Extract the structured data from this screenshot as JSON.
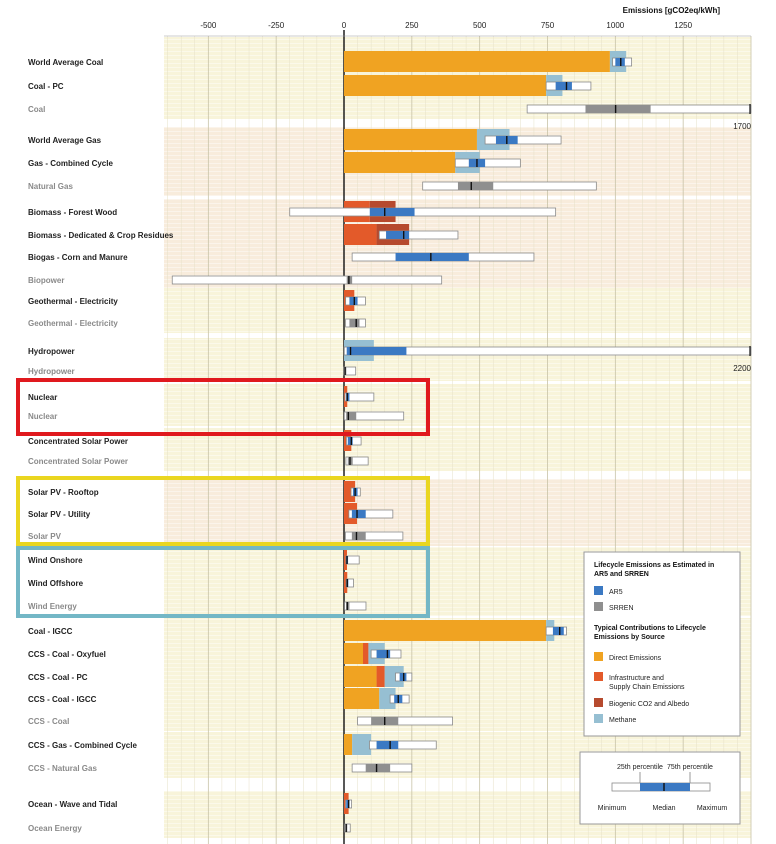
{
  "chart_data": {
    "type": "box-range",
    "title": "",
    "xlabel": "Emissions [gCO2eq/kWh]",
    "xlim": [
      -650,
      1500
    ],
    "xticks": [
      -500,
      -250,
      0,
      250,
      500,
      750,
      1000,
      1250
    ],
    "rows": [
      {
        "label": "World Average Coal",
        "kind": "ar5",
        "contrib": {
          "direct": 980,
          "infra": 0,
          "bio": 0,
          "methane": 60
        },
        "box": {
          "min": 990,
          "p25": 1000,
          "median": 1020,
          "p75": 1035,
          "max": 1060
        },
        "group_end": false,
        "overflow": null
      },
      {
        "label": "Coal - PC",
        "kind": "ar5",
        "contrib": {
          "direct": 745,
          "infra": 0,
          "bio": 0,
          "methane": 60
        },
        "box": {
          "min": 745,
          "p25": 780,
          "median": 820,
          "p75": 840,
          "max": 910
        },
        "group_end": false,
        "overflow": null
      },
      {
        "label": "Coal",
        "kind": "srren",
        "box": {
          "min": 675,
          "p25": 890,
          "median": 1001,
          "p75": 1130,
          "max": 1700
        },
        "group_end": true,
        "overflow": "1700"
      },
      {
        "label": "World Average Gas",
        "kind": "ar5",
        "contrib": {
          "direct": 490,
          "infra": 0,
          "bio": 0,
          "methane": 120
        },
        "box": {
          "min": 520,
          "p25": 560,
          "median": 600,
          "p75": 640,
          "max": 800
        },
        "group_end": false,
        "overflow": null
      },
      {
        "label": "Gas - Combined Cycle",
        "kind": "ar5",
        "contrib": {
          "direct": 410,
          "infra": 0,
          "bio": 0,
          "methane": 90
        },
        "box": {
          "min": 410,
          "p25": 460,
          "median": 490,
          "p75": 520,
          "max": 650
        },
        "group_end": false,
        "overflow": null
      },
      {
        "label": "Natural Gas",
        "kind": "srren",
        "box": {
          "min": 290,
          "p25": 420,
          "median": 469,
          "p75": 550,
          "max": 930
        },
        "group_end": true,
        "overflow": null
      },
      {
        "label": "Biomass - Forest Wood",
        "kind": "ar5",
        "contrib": {
          "direct": 0,
          "infra": 95,
          "bio": 95,
          "methane": 0
        },
        "box": {
          "min": -200,
          "p25": 95,
          "median": 150,
          "p75": 260,
          "max": 780
        },
        "group_end": false,
        "overflow": null
      },
      {
        "label": "Biomass - Dedicated & Crop Residues",
        "kind": "ar5",
        "contrib": {
          "direct": 0,
          "infra": 120,
          "bio": 120,
          "methane": 0
        },
        "box": {
          "min": 130,
          "p25": 155,
          "median": 220,
          "p75": 240,
          "max": 420
        },
        "group_end": false,
        "overflow": null
      },
      {
        "label": "Biogas - Corn and Manure",
        "kind": "ar5",
        "contrib": {
          "direct": 0,
          "infra": 0,
          "bio": 0,
          "methane": 0
        },
        "box": {
          "min": 30,
          "p25": 190,
          "median": 320,
          "p75": 460,
          "max": 700
        },
        "group_end": false,
        "overflow": null
      },
      {
        "label": "Biopower",
        "kind": "srren",
        "box": {
          "min": -633,
          "p25": 10,
          "median": 18,
          "p75": 30,
          "max": 360
        },
        "group_end": true,
        "overflow": null
      },
      {
        "label": "Geothermal - Electricity",
        "kind": "ar5",
        "contrib": {
          "direct": 0,
          "infra": 38,
          "bio": 0,
          "methane": 0
        },
        "box": {
          "min": 6,
          "p25": 20,
          "median": 38,
          "p75": 50,
          "max": 79
        },
        "group_end": false,
        "overflow": null
      },
      {
        "label": "Geothermal - Electricity",
        "kind": "srren",
        "box": {
          "min": 6,
          "p25": 20,
          "median": 45,
          "p75": 57,
          "max": 79
        },
        "group_end": true,
        "overflow": null
      },
      {
        "label": "Hydropower",
        "kind": "ar5",
        "contrib": {
          "direct": 0,
          "infra": 0,
          "bio": 0,
          "methane": 110
        },
        "box": {
          "min": 1,
          "p25": 10,
          "median": 24,
          "p75": 230,
          "max": 2200
        },
        "group_end": false,
        "overflow": "2200"
      },
      {
        "label": "Hydropower",
        "kind": "srren",
        "box": {
          "min": 0,
          "p25": 3,
          "median": 4,
          "p75": 7,
          "max": 43
        },
        "group_end": true,
        "overflow": null
      },
      {
        "label": "Nuclear",
        "kind": "ar5",
        "contrib": {
          "direct": 0,
          "infra": 12,
          "bio": 0,
          "methane": 0
        },
        "box": {
          "min": 3.7,
          "p25": 8,
          "median": 12,
          "p75": 20,
          "max": 110
        },
        "group_end": false,
        "overflow": null
      },
      {
        "label": "Nuclear",
        "kind": "srren",
        "box": {
          "min": 1,
          "p25": 8,
          "median": 16,
          "p75": 45,
          "max": 220
        },
        "group_end": true,
        "overflow": null
      },
      {
        "label": "Concentrated Solar Power",
        "kind": "ar5",
        "contrib": {
          "direct": 0,
          "infra": 27,
          "bio": 0,
          "methane": 0
        },
        "box": {
          "min": 8.8,
          "p25": 14,
          "median": 27,
          "p75": 32,
          "max": 63
        },
        "group_end": false,
        "overflow": null
      },
      {
        "label": "Concentrated Solar Power",
        "kind": "srren",
        "box": {
          "min": 7,
          "p25": 14,
          "median": 22,
          "p75": 32,
          "max": 89
        },
        "group_end": true,
        "overflow": null
      },
      {
        "label": "Solar PV - Rooftop",
        "kind": "ar5",
        "contrib": {
          "direct": 0,
          "infra": 41,
          "bio": 0,
          "methane": 0
        },
        "box": {
          "min": 26,
          "p25": 33,
          "median": 41,
          "p75": 50,
          "max": 60
        },
        "group_end": false,
        "overflow": null
      },
      {
        "label": "Solar PV - Utility",
        "kind": "ar5",
        "contrib": {
          "direct": 0,
          "infra": 48,
          "bio": 0,
          "methane": 0
        },
        "box": {
          "min": 18,
          "p25": 29,
          "median": 48,
          "p75": 80,
          "max": 180
        },
        "group_end": false,
        "overflow": null
      },
      {
        "label": "Solar PV",
        "kind": "srren",
        "box": {
          "min": 5,
          "p25": 29,
          "median": 46,
          "p75": 80,
          "max": 217
        },
        "group_end": true,
        "overflow": null
      },
      {
        "label": "Wind Onshore",
        "kind": "ar5",
        "contrib": {
          "direct": 0,
          "infra": 11,
          "bio": 0,
          "methane": 0
        },
        "box": {
          "min": 7,
          "p25": 8,
          "median": 11,
          "p75": 15,
          "max": 56
        },
        "group_end": false,
        "overflow": null
      },
      {
        "label": "Wind Offshore",
        "kind": "ar5",
        "contrib": {
          "direct": 0,
          "infra": 12,
          "bio": 0,
          "methane": 0
        },
        "box": {
          "min": 8,
          "p25": 9,
          "median": 12,
          "p75": 16,
          "max": 35
        },
        "group_end": false,
        "overflow": null
      },
      {
        "label": "Wind Energy",
        "kind": "srren",
        "box": {
          "min": 2,
          "p25": 8,
          "median": 12,
          "p75": 20,
          "max": 81
        },
        "group_end": true,
        "overflow": null
      },
      {
        "label": "Coal - IGCC",
        "kind": "ar5",
        "contrib": {
          "direct": 745,
          "infra": 0,
          "bio": 0,
          "methane": 30
        },
        "box": {
          "min": 745,
          "p25": 770,
          "median": 795,
          "p75": 810,
          "max": 820
        },
        "group_end": true,
        "overflow": null
      },
      {
        "label": "CCS - Coal - Oxyfuel",
        "kind": "ar5",
        "contrib": {
          "direct": 70,
          "infra": 20,
          "bio": 0,
          "methane": 60
        },
        "box": {
          "min": 100,
          "p25": 120,
          "median": 160,
          "p75": 170,
          "max": 210
        },
        "group_end": false,
        "overflow": null
      },
      {
        "label": "CCS - Coal - PC",
        "kind": "ar5",
        "contrib": {
          "direct": 120,
          "infra": 30,
          "bio": 0,
          "methane": 70
        },
        "box": {
          "min": 190,
          "p25": 205,
          "median": 220,
          "p75": 230,
          "max": 250
        },
        "group_end": false,
        "overflow": null
      },
      {
        "label": "CCS - Coal - IGCC",
        "kind": "ar5",
        "contrib": {
          "direct": 130,
          "infra": 0,
          "bio": 0,
          "methane": 60
        },
        "box": {
          "min": 170,
          "p25": 185,
          "median": 200,
          "p75": 215,
          "max": 240
        },
        "group_end": false,
        "overflow": null
      },
      {
        "label": "CCS - Coal",
        "kind": "srren",
        "box": {
          "min": 50,
          "p25": 100,
          "median": 150,
          "p75": 200,
          "max": 400
        },
        "group_end": true,
        "overflow": null
      },
      {
        "label": "CCS - Gas - Combined Cycle",
        "kind": "ar5",
        "contrib": {
          "direct": 30,
          "infra": 0,
          "bio": 0,
          "methane": 70
        },
        "box": {
          "min": 94,
          "p25": 120,
          "median": 170,
          "p75": 200,
          "max": 340
        },
        "group_end": false,
        "overflow": null
      },
      {
        "label": "CCS - Natural Gas",
        "kind": "srren",
        "box": {
          "min": 30,
          "p25": 80,
          "median": 120,
          "p75": 170,
          "max": 250
        },
        "group_end": true,
        "overflow": null
      },
      {
        "label": "Ocean - Wave and Tidal",
        "kind": "ar5",
        "contrib": {
          "direct": 0,
          "infra": 17,
          "bio": 0,
          "methane": 0
        },
        "box": {
          "min": 5.6,
          "p25": 8,
          "median": 17,
          "p75": 20,
          "max": 28
        },
        "group_end": false,
        "overflow": null
      },
      {
        "label": "Ocean Energy",
        "kind": "srren",
        "box": {
          "min": 2,
          "p25": 5,
          "median": 8,
          "p75": 12,
          "max": 23
        },
        "group_end": true,
        "overflow": null
      }
    ],
    "highlights": [
      {
        "name": "nuclear-highlight",
        "color": "#e0191e",
        "rows": [
          "Nuclear",
          "Nuclear"
        ]
      },
      {
        "name": "solar-highlight",
        "color": "#ead620",
        "rows": [
          "Solar PV - Rooftop",
          "Solar PV"
        ]
      },
      {
        "name": "wind-highlight",
        "color": "#73b7c6",
        "rows": [
          "Wind Onshore",
          "Wind Energy"
        ]
      }
    ],
    "colors": {
      "direct": "#f0a322",
      "infra": "#e35a2a",
      "bio": "#b64a2e",
      "methane": "#96bfd2",
      "ar5": "#3b79c3",
      "srren": "#8f8f8f",
      "panel": "#f8f4da",
      "panel_alt": "#f8ecdc"
    },
    "legend": {
      "title": "Lifecycle Emissions as Estimated in AR5 and SRREN",
      "ar5": "AR5",
      "srren": "SRREN",
      "contrib_title": "Typical Contributions to Lifecycle Emissions by Source",
      "direct": "Direct Emissions",
      "infra": "Infrastructure and Supply Chain Emissions",
      "bio": "Biogenic CO2 and Albedo",
      "methane": "Methane"
    },
    "key": {
      "p25": "25th percentile",
      "p75": "75th percentile",
      "min": "Minimum",
      "median": "Median",
      "max": "Maximum"
    }
  }
}
